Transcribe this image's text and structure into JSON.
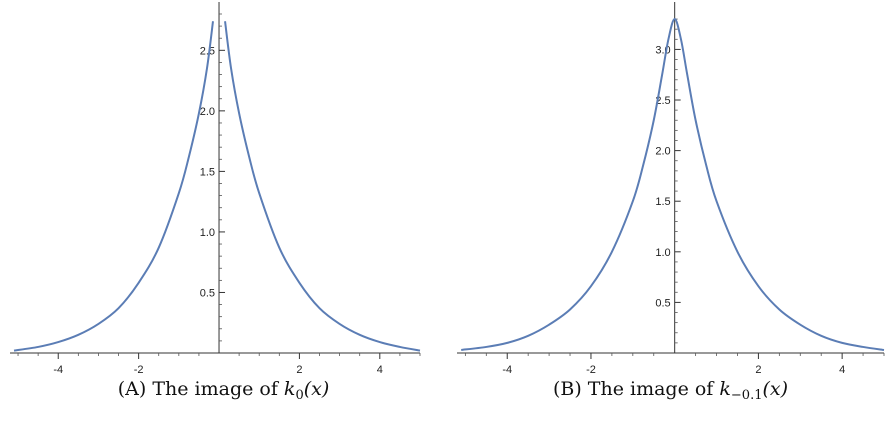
{
  "chart_data": [
    {
      "type": "line",
      "title": "",
      "xlabel": "",
      "ylabel": "",
      "xlim": [
        -5.2,
        5.0
      ],
      "ylim": [
        0,
        2.8
      ],
      "x_ticks": [
        -4,
        -2,
        2,
        4
      ],
      "x_tick_labels": [
        "-4",
        "-2",
        "2",
        "4"
      ],
      "y_ticks": [
        0.5,
        1.0,
        1.5,
        2.0,
        2.5
      ],
      "y_tick_labels": [
        "0.5",
        "1.0",
        "1.5",
        "2.0",
        "2.5"
      ],
      "line_color": "#5b7db5",
      "grid": false,
      "series": [
        {
          "x": [
            -5.1,
            -4.5,
            -4.0,
            -3.5,
            -3.0,
            -2.5,
            -2.0,
            -1.5,
            -1.0,
            -0.75,
            -0.5,
            -0.3,
            -0.15,
            0.15,
            0.3,
            0.5,
            0.75,
            1.0,
            1.5,
            2.0,
            2.5,
            3.0,
            3.5,
            4.0,
            4.5,
            5.0
          ],
          "y": [
            0.02,
            0.05,
            0.09,
            0.15,
            0.24,
            0.37,
            0.58,
            0.87,
            1.32,
            1.62,
            1.98,
            2.35,
            2.74,
            2.74,
            2.35,
            1.98,
            1.62,
            1.32,
            0.87,
            0.58,
            0.37,
            0.24,
            0.15,
            0.09,
            0.05,
            0.02
          ]
        }
      ]
    },
    {
      "type": "line",
      "title": "",
      "xlabel": "",
      "ylabel": "",
      "xlim": [
        -5.2,
        5.0
      ],
      "ylim": [
        0,
        3.35
      ],
      "x_ticks": [
        -4,
        -2,
        2,
        4
      ],
      "x_tick_labels": [
        "-4",
        "-2",
        "2",
        "4"
      ],
      "y_ticks": [
        0.5,
        1.0,
        1.5,
        2.0,
        2.5,
        3.0
      ],
      "y_tick_labels": [
        "0.5",
        "1.0",
        "1.5",
        "2.0",
        "2.5",
        "3.0"
      ],
      "line_color": "#5b7db5",
      "grid": false,
      "series": [
        {
          "x": [
            -5.1,
            -4.5,
            -4.0,
            -3.5,
            -3.0,
            -2.5,
            -2.0,
            -1.5,
            -1.0,
            -0.75,
            -0.5,
            -0.3,
            -0.15,
            0.0,
            0.15,
            0.3,
            0.5,
            0.75,
            1.0,
            1.5,
            2.0,
            2.5,
            3.0,
            3.5,
            4.0,
            4.5,
            5.0
          ],
          "y": [
            0.03,
            0.06,
            0.1,
            0.17,
            0.28,
            0.43,
            0.66,
            1.0,
            1.5,
            1.86,
            2.3,
            2.75,
            3.1,
            3.3,
            3.1,
            2.75,
            2.3,
            1.86,
            1.5,
            1.0,
            0.66,
            0.43,
            0.28,
            0.17,
            0.1,
            0.06,
            0.03
          ]
        }
      ]
    }
  ],
  "captions": [
    {
      "label": "(A)",
      "prefix": "The image of",
      "func": "k",
      "sub": "0",
      "arg": "(x)"
    },
    {
      "label": "(B)",
      "prefix": "The image of",
      "func": "k",
      "sub": "−0.1",
      "arg": "(x)"
    }
  ]
}
